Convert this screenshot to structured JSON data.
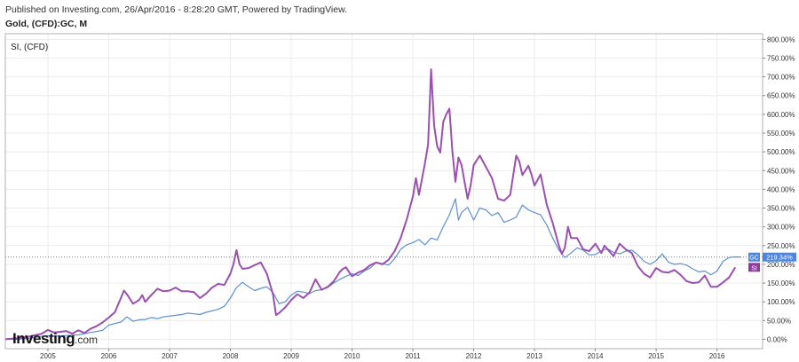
{
  "header": {
    "published": "Published on Investing.com, 26/Apr/2016 - 8:28:20 GMT, Powered by TradingView.",
    "symbol": "Gold, (CFD):GC, M"
  },
  "legend": {
    "series_label": "SI,  (CFD)"
  },
  "brand": {
    "logo_main": "Investing",
    "logo_suffix": ".com"
  },
  "colors": {
    "gold": "#5b8fd6",
    "silver": "#9b4fb0",
    "gold_badge": "#4a86e8",
    "silver_badge": "#8e3c9e",
    "grid": "#ececec",
    "axis": "#888888"
  },
  "chart_data": {
    "type": "line",
    "x_axis": {
      "ticks": [
        "2005",
        "2006",
        "2007",
        "2008",
        "2009",
        "2010",
        "2011",
        "2012",
        "2013",
        "2014",
        "2015",
        "2016"
      ],
      "range": [
        2004.3,
        2016.75
      ]
    },
    "y_axis": {
      "format": "percent",
      "range": [
        -25,
        815
      ],
      "ticks": [
        "0.00%",
        "50.00%",
        "100.00%",
        "150.00%",
        "200.00%",
        "250.00%",
        "300.00%",
        "350.00%",
        "400.00%",
        "450.00%",
        "500.00%",
        "550.00%",
        "600.00%",
        "650.00%",
        "700.00%",
        "750.00%",
        "800.00%"
      ],
      "tick_values": [
        0,
        50,
        100,
        150,
        200,
        250,
        300,
        350,
        400,
        450,
        500,
        550,
        600,
        650,
        700,
        750,
        800
      ]
    },
    "reference_line": {
      "series": "GC",
      "value": 219.34,
      "style": "dotted"
    },
    "badges": [
      {
        "series": "GC",
        "label": "GC",
        "value_label": "219.34%",
        "value": 219.34
      },
      {
        "series": "SI",
        "label": "SI",
        "value": 192
      }
    ],
    "series": [
      {
        "name": "GC",
        "points": [
          [
            2004.3,
            0
          ],
          [
            2004.5,
            0
          ],
          [
            2004.7,
            3
          ],
          [
            2004.9,
            8
          ],
          [
            2005.0,
            10
          ],
          [
            2005.1,
            8
          ],
          [
            2005.3,
            10
          ],
          [
            2005.5,
            12
          ],
          [
            2005.7,
            18
          ],
          [
            2005.9,
            24
          ],
          [
            2006.0,
            38
          ],
          [
            2006.1,
            42
          ],
          [
            2006.2,
            46
          ],
          [
            2006.3,
            60
          ],
          [
            2006.4,
            48
          ],
          [
            2006.5,
            52
          ],
          [
            2006.6,
            53
          ],
          [
            2006.7,
            58
          ],
          [
            2006.8,
            55
          ],
          [
            2006.9,
            60
          ],
          [
            2007.0,
            62
          ],
          [
            2007.1,
            64
          ],
          [
            2007.2,
            66
          ],
          [
            2007.3,
            70
          ],
          [
            2007.4,
            68
          ],
          [
            2007.5,
            66
          ],
          [
            2007.6,
            72
          ],
          [
            2007.7,
            76
          ],
          [
            2007.8,
            80
          ],
          [
            2007.9,
            88
          ],
          [
            2008.0,
            110
          ],
          [
            2008.1,
            138
          ],
          [
            2008.2,
            152
          ],
          [
            2008.3,
            140
          ],
          [
            2008.4,
            130
          ],
          [
            2008.5,
            136
          ],
          [
            2008.6,
            140
          ],
          [
            2008.7,
            125
          ],
          [
            2008.8,
            95
          ],
          [
            2008.9,
            100
          ],
          [
            2009.0,
            118
          ],
          [
            2009.1,
            128
          ],
          [
            2009.2,
            126
          ],
          [
            2009.3,
            122
          ],
          [
            2009.4,
            130
          ],
          [
            2009.5,
            132
          ],
          [
            2009.6,
            138
          ],
          [
            2009.7,
            150
          ],
          [
            2009.8,
            160
          ],
          [
            2009.9,
            168
          ],
          [
            2010.0,
            175
          ],
          [
            2010.1,
            170
          ],
          [
            2010.2,
            182
          ],
          [
            2010.3,
            190
          ],
          [
            2010.4,
            205
          ],
          [
            2010.5,
            202
          ],
          [
            2010.6,
            198
          ],
          [
            2010.7,
            215
          ],
          [
            2010.8,
            240
          ],
          [
            2010.9,
            252
          ],
          [
            2011.0,
            258
          ],
          [
            2011.1,
            266
          ],
          [
            2011.2,
            252
          ],
          [
            2011.3,
            270
          ],
          [
            2011.4,
            265
          ],
          [
            2011.5,
            300
          ],
          [
            2011.6,
            332
          ],
          [
            2011.7,
            375
          ],
          [
            2011.75,
            318
          ],
          [
            2011.8,
            338
          ],
          [
            2011.9,
            352
          ],
          [
            2012.0,
            318
          ],
          [
            2012.1,
            350
          ],
          [
            2012.2,
            345
          ],
          [
            2012.3,
            330
          ],
          [
            2012.4,
            338
          ],
          [
            2012.5,
            312
          ],
          [
            2012.6,
            318
          ],
          [
            2012.7,
            326
          ],
          [
            2012.8,
            358
          ],
          [
            2012.9,
            345
          ],
          [
            2013.0,
            338
          ],
          [
            2013.1,
            332
          ],
          [
            2013.2,
            305
          ],
          [
            2013.3,
            270
          ],
          [
            2013.4,
            238
          ],
          [
            2013.5,
            218
          ],
          [
            2013.6,
            230
          ],
          [
            2013.7,
            244
          ],
          [
            2013.8,
            238
          ],
          [
            2013.9,
            225
          ],
          [
            2014.0,
            226
          ],
          [
            2014.1,
            236
          ],
          [
            2014.2,
            242
          ],
          [
            2014.3,
            232
          ],
          [
            2014.4,
            228
          ],
          [
            2014.5,
            235
          ],
          [
            2014.6,
            238
          ],
          [
            2014.7,
            225
          ],
          [
            2014.8,
            208
          ],
          [
            2014.9,
            200
          ],
          [
            2015.0,
            210
          ],
          [
            2015.1,
            228
          ],
          [
            2015.2,
            206
          ],
          [
            2015.3,
            200
          ],
          [
            2015.4,
            202
          ],
          [
            2015.5,
            198
          ],
          [
            2015.6,
            188
          ],
          [
            2015.7,
            180
          ],
          [
            2015.8,
            182
          ],
          [
            2015.9,
            172
          ],
          [
            2016.0,
            182
          ],
          [
            2016.1,
            208
          ],
          [
            2016.2,
            218
          ],
          [
            2016.3,
            220
          ],
          [
            2016.4,
            219.34
          ]
        ]
      },
      {
        "name": "SI",
        "points": [
          [
            2004.3,
            0
          ],
          [
            2004.5,
            3
          ],
          [
            2004.7,
            8
          ],
          [
            2004.9,
            15
          ],
          [
            2005.0,
            25
          ],
          [
            2005.1,
            18
          ],
          [
            2005.2,
            20
          ],
          [
            2005.3,
            22
          ],
          [
            2005.4,
            15
          ],
          [
            2005.5,
            24
          ],
          [
            2005.6,
            17
          ],
          [
            2005.7,
            28
          ],
          [
            2005.8,
            35
          ],
          [
            2005.9,
            45
          ],
          [
            2006.0,
            58
          ],
          [
            2006.1,
            72
          ],
          [
            2006.2,
            110
          ],
          [
            2006.25,
            130
          ],
          [
            2006.3,
            120
          ],
          [
            2006.4,
            95
          ],
          [
            2006.5,
            105
          ],
          [
            2006.55,
            118
          ],
          [
            2006.6,
            100
          ],
          [
            2006.7,
            118
          ],
          [
            2006.8,
            135
          ],
          [
            2006.9,
            128
          ],
          [
            2007.0,
            130
          ],
          [
            2007.1,
            138
          ],
          [
            2007.2,
            128
          ],
          [
            2007.3,
            128
          ],
          [
            2007.4,
            126
          ],
          [
            2007.5,
            110
          ],
          [
            2007.6,
            122
          ],
          [
            2007.7,
            138
          ],
          [
            2007.8,
            148
          ],
          [
            2007.9,
            145
          ],
          [
            2008.0,
            175
          ],
          [
            2008.05,
            200
          ],
          [
            2008.1,
            238
          ],
          [
            2008.15,
            200
          ],
          [
            2008.2,
            188
          ],
          [
            2008.3,
            190
          ],
          [
            2008.4,
            198
          ],
          [
            2008.5,
            205
          ],
          [
            2008.6,
            175
          ],
          [
            2008.7,
            120
          ],
          [
            2008.75,
            65
          ],
          [
            2008.8,
            70
          ],
          [
            2008.9,
            85
          ],
          [
            2009.0,
            105
          ],
          [
            2009.1,
            120
          ],
          [
            2009.2,
            110
          ],
          [
            2009.3,
            125
          ],
          [
            2009.4,
            160
          ],
          [
            2009.5,
            132
          ],
          [
            2009.6,
            140
          ],
          [
            2009.7,
            155
          ],
          [
            2009.8,
            180
          ],
          [
            2009.85,
            188
          ],
          [
            2009.9,
            192
          ],
          [
            2010.0,
            168
          ],
          [
            2010.1,
            178
          ],
          [
            2010.2,
            185
          ],
          [
            2010.3,
            198
          ],
          [
            2010.4,
            205
          ],
          [
            2010.5,
            200
          ],
          [
            2010.6,
            212
          ],
          [
            2010.7,
            235
          ],
          [
            2010.8,
            270
          ],
          [
            2010.9,
            320
          ],
          [
            2011.0,
            380
          ],
          [
            2011.05,
            430
          ],
          [
            2011.1,
            385
          ],
          [
            2011.2,
            470
          ],
          [
            2011.25,
            520
          ],
          [
            2011.3,
            720
          ],
          [
            2011.35,
            570
          ],
          [
            2011.4,
            515
          ],
          [
            2011.45,
            498
          ],
          [
            2011.5,
            580
          ],
          [
            2011.55,
            600
          ],
          [
            2011.6,
            615
          ],
          [
            2011.65,
            500
          ],
          [
            2011.7,
            420
          ],
          [
            2011.75,
            485
          ],
          [
            2011.8,
            465
          ],
          [
            2011.9,
            375
          ],
          [
            2011.95,
            410
          ],
          [
            2012.0,
            465
          ],
          [
            2012.1,
            490
          ],
          [
            2012.2,
            460
          ],
          [
            2012.3,
            430
          ],
          [
            2012.4,
            375
          ],
          [
            2012.5,
            370
          ],
          [
            2012.6,
            385
          ],
          [
            2012.7,
            490
          ],
          [
            2012.75,
            475
          ],
          [
            2012.8,
            438
          ],
          [
            2012.9,
            463
          ],
          [
            2012.95,
            440
          ],
          [
            2013.0,
            410
          ],
          [
            2013.1,
            440
          ],
          [
            2013.2,
            360
          ],
          [
            2013.3,
            310
          ],
          [
            2013.4,
            250
          ],
          [
            2013.45,
            228
          ],
          [
            2013.5,
            245
          ],
          [
            2013.55,
            300
          ],
          [
            2013.6,
            270
          ],
          [
            2013.7,
            270
          ],
          [
            2013.8,
            240
          ],
          [
            2013.9,
            235
          ],
          [
            2014.0,
            255
          ],
          [
            2014.1,
            230
          ],
          [
            2014.15,
            250
          ],
          [
            2014.2,
            240
          ],
          [
            2014.3,
            222
          ],
          [
            2014.4,
            255
          ],
          [
            2014.5,
            240
          ],
          [
            2014.6,
            230
          ],
          [
            2014.7,
            195
          ],
          [
            2014.8,
            175
          ],
          [
            2014.9,
            165
          ],
          [
            2015.0,
            190
          ],
          [
            2015.1,
            180
          ],
          [
            2015.2,
            178
          ],
          [
            2015.3,
            185
          ],
          [
            2015.4,
            172
          ],
          [
            2015.5,
            155
          ],
          [
            2015.6,
            150
          ],
          [
            2015.7,
            152
          ],
          [
            2015.8,
            170
          ],
          [
            2015.9,
            140
          ],
          [
            2016.0,
            140
          ],
          [
            2016.1,
            152
          ],
          [
            2016.2,
            165
          ],
          [
            2016.3,
            192
          ]
        ]
      }
    ]
  }
}
